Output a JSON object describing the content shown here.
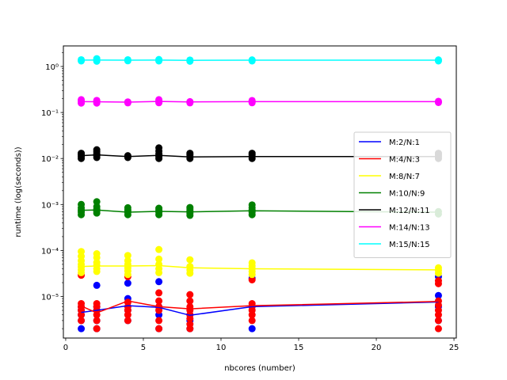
{
  "chart_data": {
    "type": "scatter",
    "title": "",
    "xlabel": "nbcores (number)",
    "ylabel": "runtime (log(seconds))",
    "xlim": [
      -0.15,
      25.15
    ],
    "ylim": [
      1.25e-06,
      2.8
    ],
    "yscale": "log",
    "xticks": [
      0,
      5,
      10,
      15,
      20,
      25
    ],
    "xtick_labels": [
      "0",
      "5",
      "10",
      "15",
      "20",
      "25"
    ],
    "yticks": [
      1e-05,
      0.0001,
      0.001,
      0.01,
      0.1,
      1.0
    ],
    "ytick_labels": [
      "10⁻⁵",
      "10⁻⁴",
      "10⁻³",
      "10⁻²",
      "10⁻¹",
      "10⁰"
    ],
    "grid": false,
    "legend_position": "center-right",
    "series": [
      {
        "name": "M:2/N:1",
        "color": "#0000ff",
        "line_x": [
          1,
          2,
          4,
          6,
          8,
          12,
          24
        ],
        "line_y": [
          4.5e-06,
          5e-06,
          6.3e-06,
          5.8e-06,
          3.9e-06,
          6e-06,
          7.6e-06
        ],
        "points": [
          [
            1,
            2e-06
          ],
          [
            1,
            3e-06
          ],
          [
            1,
            4e-06
          ],
          [
            1,
            5e-06
          ],
          [
            1,
            6e-06
          ],
          [
            2,
            2e-06
          ],
          [
            2,
            3e-06
          ],
          [
            2,
            5e-06
          ],
          [
            2,
            6e-06
          ],
          [
            2,
            1.75e-05
          ],
          [
            4,
            3e-06
          ],
          [
            4,
            5e-06
          ],
          [
            4,
            9e-06
          ],
          [
            4,
            1.95e-05
          ],
          [
            6,
            2e-06
          ],
          [
            6,
            4e-06
          ],
          [
            6,
            6e-06
          ],
          [
            6,
            2.1e-05
          ],
          [
            8,
            2e-06
          ],
          [
            8,
            3e-06
          ],
          [
            8,
            4e-06
          ],
          [
            12,
            2e-06
          ],
          [
            12,
            6e-06
          ],
          [
            12,
            2.5e-05
          ],
          [
            24,
            3e-06
          ],
          [
            24,
            6e-06
          ],
          [
            24,
            1.05e-05
          ],
          [
            24,
            2.7e-05
          ]
        ]
      },
      {
        "name": "M:4/N:3",
        "color": "#ff0000",
        "line_x": [
          1,
          2,
          4,
          6,
          8,
          12,
          24
        ],
        "line_y": [
          6.2e-06,
          4.4e-06,
          8e-06,
          6e-06,
          5.4e-06,
          6.3e-06,
          7.8e-06
        ],
        "points": [
          [
            1,
            3e-06
          ],
          [
            1,
            4e-06
          ],
          [
            1,
            5e-06
          ],
          [
            1,
            6e-06
          ],
          [
            1,
            7e-06
          ],
          [
            1,
            2.9e-05
          ],
          [
            2,
            2e-06
          ],
          [
            2,
            3e-06
          ],
          [
            2,
            4e-06
          ],
          [
            2,
            5e-06
          ],
          [
            2,
            6e-06
          ],
          [
            2,
            7e-06
          ],
          [
            4,
            3e-06
          ],
          [
            4,
            4e-06
          ],
          [
            4,
            5e-06
          ],
          [
            4,
            6e-06
          ],
          [
            4,
            7.5e-06
          ],
          [
            4,
            2.7e-05
          ],
          [
            6,
            2e-06
          ],
          [
            6,
            3e-06
          ],
          [
            6,
            5e-06
          ],
          [
            6,
            6e-06
          ],
          [
            6,
            8e-06
          ],
          [
            6,
            1.2e-05
          ],
          [
            8,
            2e-06
          ],
          [
            8,
            2.5e-06
          ],
          [
            8,
            3.3e-06
          ],
          [
            8,
            4e-06
          ],
          [
            8,
            5e-06
          ],
          [
            8,
            6e-06
          ],
          [
            8,
            8e-06
          ],
          [
            8,
            1.1e-05
          ],
          [
            12,
            3e-06
          ],
          [
            12,
            4e-06
          ],
          [
            12,
            5e-06
          ],
          [
            12,
            6e-06
          ],
          [
            12,
            7e-06
          ],
          [
            12,
            2.3e-05
          ],
          [
            24,
            2e-06
          ],
          [
            24,
            3e-06
          ],
          [
            24,
            4e-06
          ],
          [
            24,
            5e-06
          ],
          [
            24,
            6.5e-06
          ],
          [
            24,
            8e-06
          ],
          [
            24,
            1.9e-05
          ],
          [
            24,
            2.2e-05
          ]
        ]
      },
      {
        "name": "M:8/N:7",
        "color": "#ffff00",
        "line_x": [
          1,
          2,
          4,
          6,
          8,
          12,
          24
        ],
        "line_y": [
          4.5e-05,
          4.6e-05,
          4.6e-05,
          4.7e-05,
          4.2e-05,
          4e-05,
          3.8e-05
        ],
        "points": [
          [
            1,
            3.3e-05
          ],
          [
            1,
            3.8e-05
          ],
          [
            1,
            4.4e-05
          ],
          [
            1,
            5e-05
          ],
          [
            1,
            6e-05
          ],
          [
            1,
            7.5e-05
          ],
          [
            1,
            9.5e-05
          ],
          [
            2,
            3.5e-05
          ],
          [
            2,
            4e-05
          ],
          [
            2,
            4.8e-05
          ],
          [
            2,
            5.5e-05
          ],
          [
            2,
            7e-05
          ],
          [
            2,
            8.5e-05
          ],
          [
            4,
            3e-05
          ],
          [
            4,
            3.6e-05
          ],
          [
            4,
            4.2e-05
          ],
          [
            4,
            5e-05
          ],
          [
            4,
            6e-05
          ],
          [
            4,
            7.8e-05
          ],
          [
            6,
            3.3e-05
          ],
          [
            6,
            4e-05
          ],
          [
            6,
            5e-05
          ],
          [
            6,
            6.5e-05
          ],
          [
            6,
            0.000105
          ],
          [
            8,
            3.2e-05
          ],
          [
            8,
            3.8e-05
          ],
          [
            8,
            4.5e-05
          ],
          [
            8,
            6.3e-05
          ],
          [
            12,
            3e-05
          ],
          [
            12,
            3.5e-05
          ],
          [
            12,
            4e-05
          ],
          [
            12,
            4.6e-05
          ],
          [
            12,
            5.4e-05
          ],
          [
            24,
            3.2e-05
          ],
          [
            24,
            3.7e-05
          ],
          [
            24,
            4.2e-05
          ]
        ]
      },
      {
        "name": "M:10/N:9",
        "color": "#008000",
        "line_x": [
          1,
          2,
          4,
          6,
          8,
          12,
          24
        ],
        "line_y": [
          0.00075,
          0.00076,
          0.00068,
          0.00071,
          0.00069,
          0.00073,
          0.00068
        ],
        "points": [
          [
            1,
            0.0006
          ],
          [
            1,
            0.00068
          ],
          [
            1,
            0.00075
          ],
          [
            1,
            0.00085
          ],
          [
            1,
            0.001
          ],
          [
            2,
            0.00065
          ],
          [
            2,
            0.00072
          ],
          [
            2,
            0.0008
          ],
          [
            2,
            0.0009
          ],
          [
            2,
            0.00115
          ],
          [
            4,
            0.0006
          ],
          [
            4,
            0.00068
          ],
          [
            4,
            0.00075
          ],
          [
            4,
            0.00085
          ],
          [
            6,
            0.0006
          ],
          [
            6,
            0.00068
          ],
          [
            6,
            0.00076
          ],
          [
            6,
            0.00083
          ],
          [
            8,
            0.00058
          ],
          [
            8,
            0.00065
          ],
          [
            8,
            0.00072
          ],
          [
            8,
            0.0008
          ],
          [
            8,
            0.00086
          ],
          [
            12,
            0.0006
          ],
          [
            12,
            0.00068
          ],
          [
            12,
            0.00075
          ],
          [
            12,
            0.00085
          ],
          [
            12,
            0.00098
          ],
          [
            24,
            0.00062
          ],
          [
            24,
            0.0007
          ]
        ]
      },
      {
        "name": "M:12/N:11",
        "color": "#000000",
        "line_x": [
          1,
          2,
          4,
          6,
          8,
          12,
          24
        ],
        "line_y": [
          0.0115,
          0.012,
          0.011,
          0.0117,
          0.0108,
          0.011,
          0.011
        ],
        "points": [
          [
            1,
            0.01
          ],
          [
            1,
            0.011
          ],
          [
            1,
            0.012
          ],
          [
            1,
            0.013
          ],
          [
            2,
            0.0105
          ],
          [
            2,
            0.0115
          ],
          [
            2,
            0.0125
          ],
          [
            2,
            0.014
          ],
          [
            2,
            0.0155
          ],
          [
            4,
            0.0105
          ],
          [
            4,
            0.0115
          ],
          [
            6,
            0.01
          ],
          [
            6,
            0.011
          ],
          [
            6,
            0.0125
          ],
          [
            6,
            0.0145
          ],
          [
            6,
            0.017
          ],
          [
            8,
            0.01
          ],
          [
            8,
            0.011
          ],
          [
            8,
            0.012
          ],
          [
            8,
            0.013
          ],
          [
            12,
            0.01
          ],
          [
            12,
            0.011
          ],
          [
            12,
            0.012
          ],
          [
            12,
            0.013
          ],
          [
            24,
            0.01
          ],
          [
            24,
            0.011
          ],
          [
            24,
            0.012
          ],
          [
            24,
            0.013
          ]
        ]
      },
      {
        "name": "M:14/N:13",
        "color": "#ff00ff",
        "line_x": [
          1,
          2,
          4,
          6,
          8,
          12,
          24
        ],
        "line_y": [
          0.172,
          0.171,
          0.168,
          0.174,
          0.17,
          0.172,
          0.172
        ],
        "points": [
          [
            1,
            0.16
          ],
          [
            1,
            0.175
          ],
          [
            1,
            0.19
          ],
          [
            2,
            0.16
          ],
          [
            2,
            0.172
          ],
          [
            2,
            0.183
          ],
          [
            4,
            0.162
          ],
          [
            4,
            0.17
          ],
          [
            6,
            0.163
          ],
          [
            6,
            0.176
          ],
          [
            6,
            0.19
          ],
          [
            8,
            0.162
          ],
          [
            8,
            0.172
          ],
          [
            12,
            0.163
          ],
          [
            12,
            0.172
          ],
          [
            12,
            0.182
          ],
          [
            24,
            0.165
          ],
          [
            24,
            0.175
          ]
        ]
      },
      {
        "name": "M:15/N:15",
        "color": "#00ffff",
        "line_x": [
          1,
          2,
          4,
          6,
          8,
          12,
          24
        ],
        "line_y": [
          1.38,
          1.38,
          1.37,
          1.38,
          1.36,
          1.37,
          1.37
        ],
        "points": [
          [
            1,
            1.32
          ],
          [
            1,
            1.4
          ],
          [
            2,
            1.3
          ],
          [
            2,
            1.38
          ],
          [
            2,
            1.48
          ],
          [
            4,
            1.33
          ],
          [
            4,
            1.4
          ],
          [
            6,
            1.32
          ],
          [
            6,
            1.42
          ],
          [
            8,
            1.3
          ],
          [
            8,
            1.38
          ],
          [
            12,
            1.32
          ],
          [
            12,
            1.39
          ],
          [
            24,
            1.32
          ],
          [
            24,
            1.39
          ]
        ]
      }
    ]
  }
}
